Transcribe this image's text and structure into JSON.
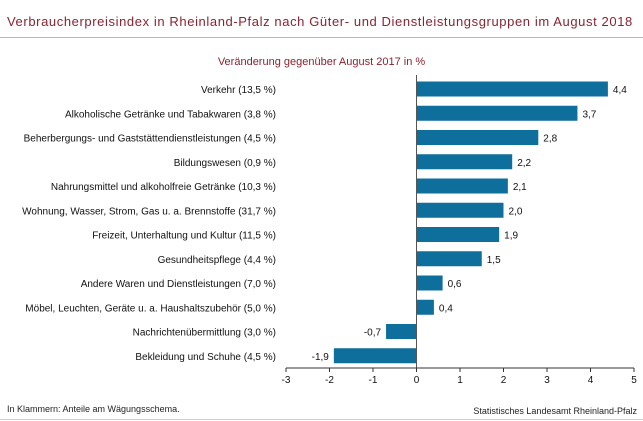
{
  "title": "Verbraucherpreisindex in Rheinland-Pfalz nach Güter- und Dienstleistungsgruppen im August 2018",
  "subtitle": "Veränderung gegenüber August 2017 in %",
  "footnote": "In Klammern: Anteile am Wägungsschema.",
  "source": "Statistisches Landesamt Rheinland-Pfalz",
  "colors": {
    "bar": "#0e6f9c",
    "title": "#8b2230",
    "axis": "#333333"
  },
  "chart_data": {
    "type": "bar",
    "orientation": "horizontal",
    "title": "Verbraucherpreisindex in Rheinland-Pfalz nach Güter- und Dienstleistungsgruppen im August 2018",
    "subtitle": "Veränderung gegenüber August 2017 in %",
    "categories": [
      "Verkehr (13,5 %)",
      "Alkoholische Getränke und Tabakwaren (3,8 %)",
      "Beherbergungs- und Gaststättendienstleistungen (4,5 %)",
      "Bildungswesen (0,9 %)",
      "Nahrungsmittel und alkoholfreie Getränke (10,3 %)",
      "Wohnung, Wasser, Strom, Gas u. a. Brennstoffe (31,7 %)",
      "Freizeit, Unterhaltung und Kultur (11,5 %)",
      "Gesundheitspflege (4,4 %)",
      "Andere Waren und Dienstleistungen (7,0 %)",
      "Möbel, Leuchten, Geräte u. a. Haushaltszubehör (5,0 %)",
      "Nachrichtenübermittlung (3,0 %)",
      "Bekleidung und Schuhe (4,5 %)"
    ],
    "values": [
      4.4,
      3.7,
      2.8,
      2.2,
      2.1,
      2.0,
      1.9,
      1.5,
      0.6,
      0.4,
      -0.7,
      -1.9
    ],
    "value_labels": [
      "4,4",
      "3,7",
      "2,8",
      "2,2",
      "2,1",
      "2,0",
      "1,9",
      "1,5",
      "0,6",
      "0,4",
      "-0,7",
      "-1,9"
    ],
    "xlim": [
      -3,
      5
    ],
    "xticks": [
      -3,
      -2,
      -1,
      0,
      1,
      2,
      3,
      4,
      5
    ],
    "xtick_labels": [
      "-3",
      "-2",
      "-1",
      "0",
      "1",
      "2",
      "3",
      "4",
      "5"
    ],
    "xlabel": "",
    "ylabel": "",
    "grid": false,
    "legend": false
  }
}
